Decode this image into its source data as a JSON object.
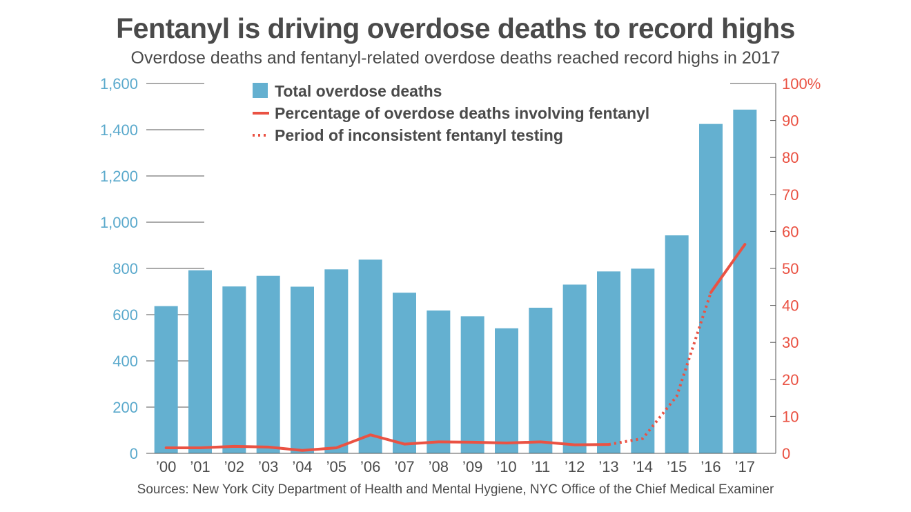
{
  "chart_data": {
    "type": "bar",
    "title": "Fentanyl is driving overdose deaths to record highs",
    "subtitle": "Overdose deaths and fentanyl-related overdose deaths reached record highs in 2017",
    "source": "Sources: New York City Department of Health and Mental Hygiene, NYC Office of the Chief Medical Examiner",
    "categories": [
      "’00",
      "’01",
      "’02",
      "’03",
      "’04",
      "’05",
      "’06",
      "’07",
      "’08",
      "’09",
      "’10",
      "’11",
      "’12",
      "’13",
      "’14",
      "’15",
      "’16",
      "’17"
    ],
    "series": [
      {
        "name": "Total overdose deaths",
        "kind": "bar",
        "axis": "left",
        "color": "#64b0d0",
        "values": [
          637,
          792,
          722,
          768,
          721,
          796,
          838,
          695,
          618,
          593,
          541,
          630,
          730,
          787,
          799,
          943,
          1425,
          1487
        ]
      },
      {
        "name": "Percentage of overdose deaths involving fentanyl",
        "kind": "line",
        "axis": "right",
        "color": "#ea5243",
        "values": [
          1.5,
          1.5,
          1.9,
          1.7,
          0.8,
          1.5,
          5.0,
          2.5,
          3.1,
          3.0,
          2.8,
          3.1,
          2.3,
          2.4,
          4.0,
          15.5,
          43.5,
          56.5
        ],
        "dotted_from_index": 13,
        "dotted_label": "Period of inconsistent fentanyl testing"
      }
    ],
    "y_left": {
      "ylim": [
        0,
        1600
      ],
      "ticks": [
        0,
        200,
        400,
        600,
        800,
        1000,
        1200,
        1400,
        1600
      ],
      "tick_labels": [
        "0",
        "200",
        "400",
        "600",
        "800",
        "1,000",
        "1,200",
        "1,400",
        "1,600"
      ],
      "color": "#5aa9cc"
    },
    "y_right": {
      "ylim": [
        0,
        100
      ],
      "ticks": [
        0,
        10,
        20,
        30,
        40,
        50,
        60,
        70,
        80,
        90,
        100
      ],
      "tick_labels": [
        "0",
        "10",
        "20",
        "30",
        "40",
        "50",
        "60",
        "70",
        "80",
        "90",
        "100%"
      ],
      "color": "#ea5243"
    },
    "legend": {
      "placement": "top-center",
      "items": [
        {
          "label": "Total overdose deaths",
          "marker": "square"
        },
        {
          "label": "Percentage of overdose deaths involving fentanyl",
          "marker": "solid-line"
        },
        {
          "label": "Period of inconsistent fentanyl testing",
          "marker": "dotted-line"
        }
      ]
    },
    "grid": true
  }
}
